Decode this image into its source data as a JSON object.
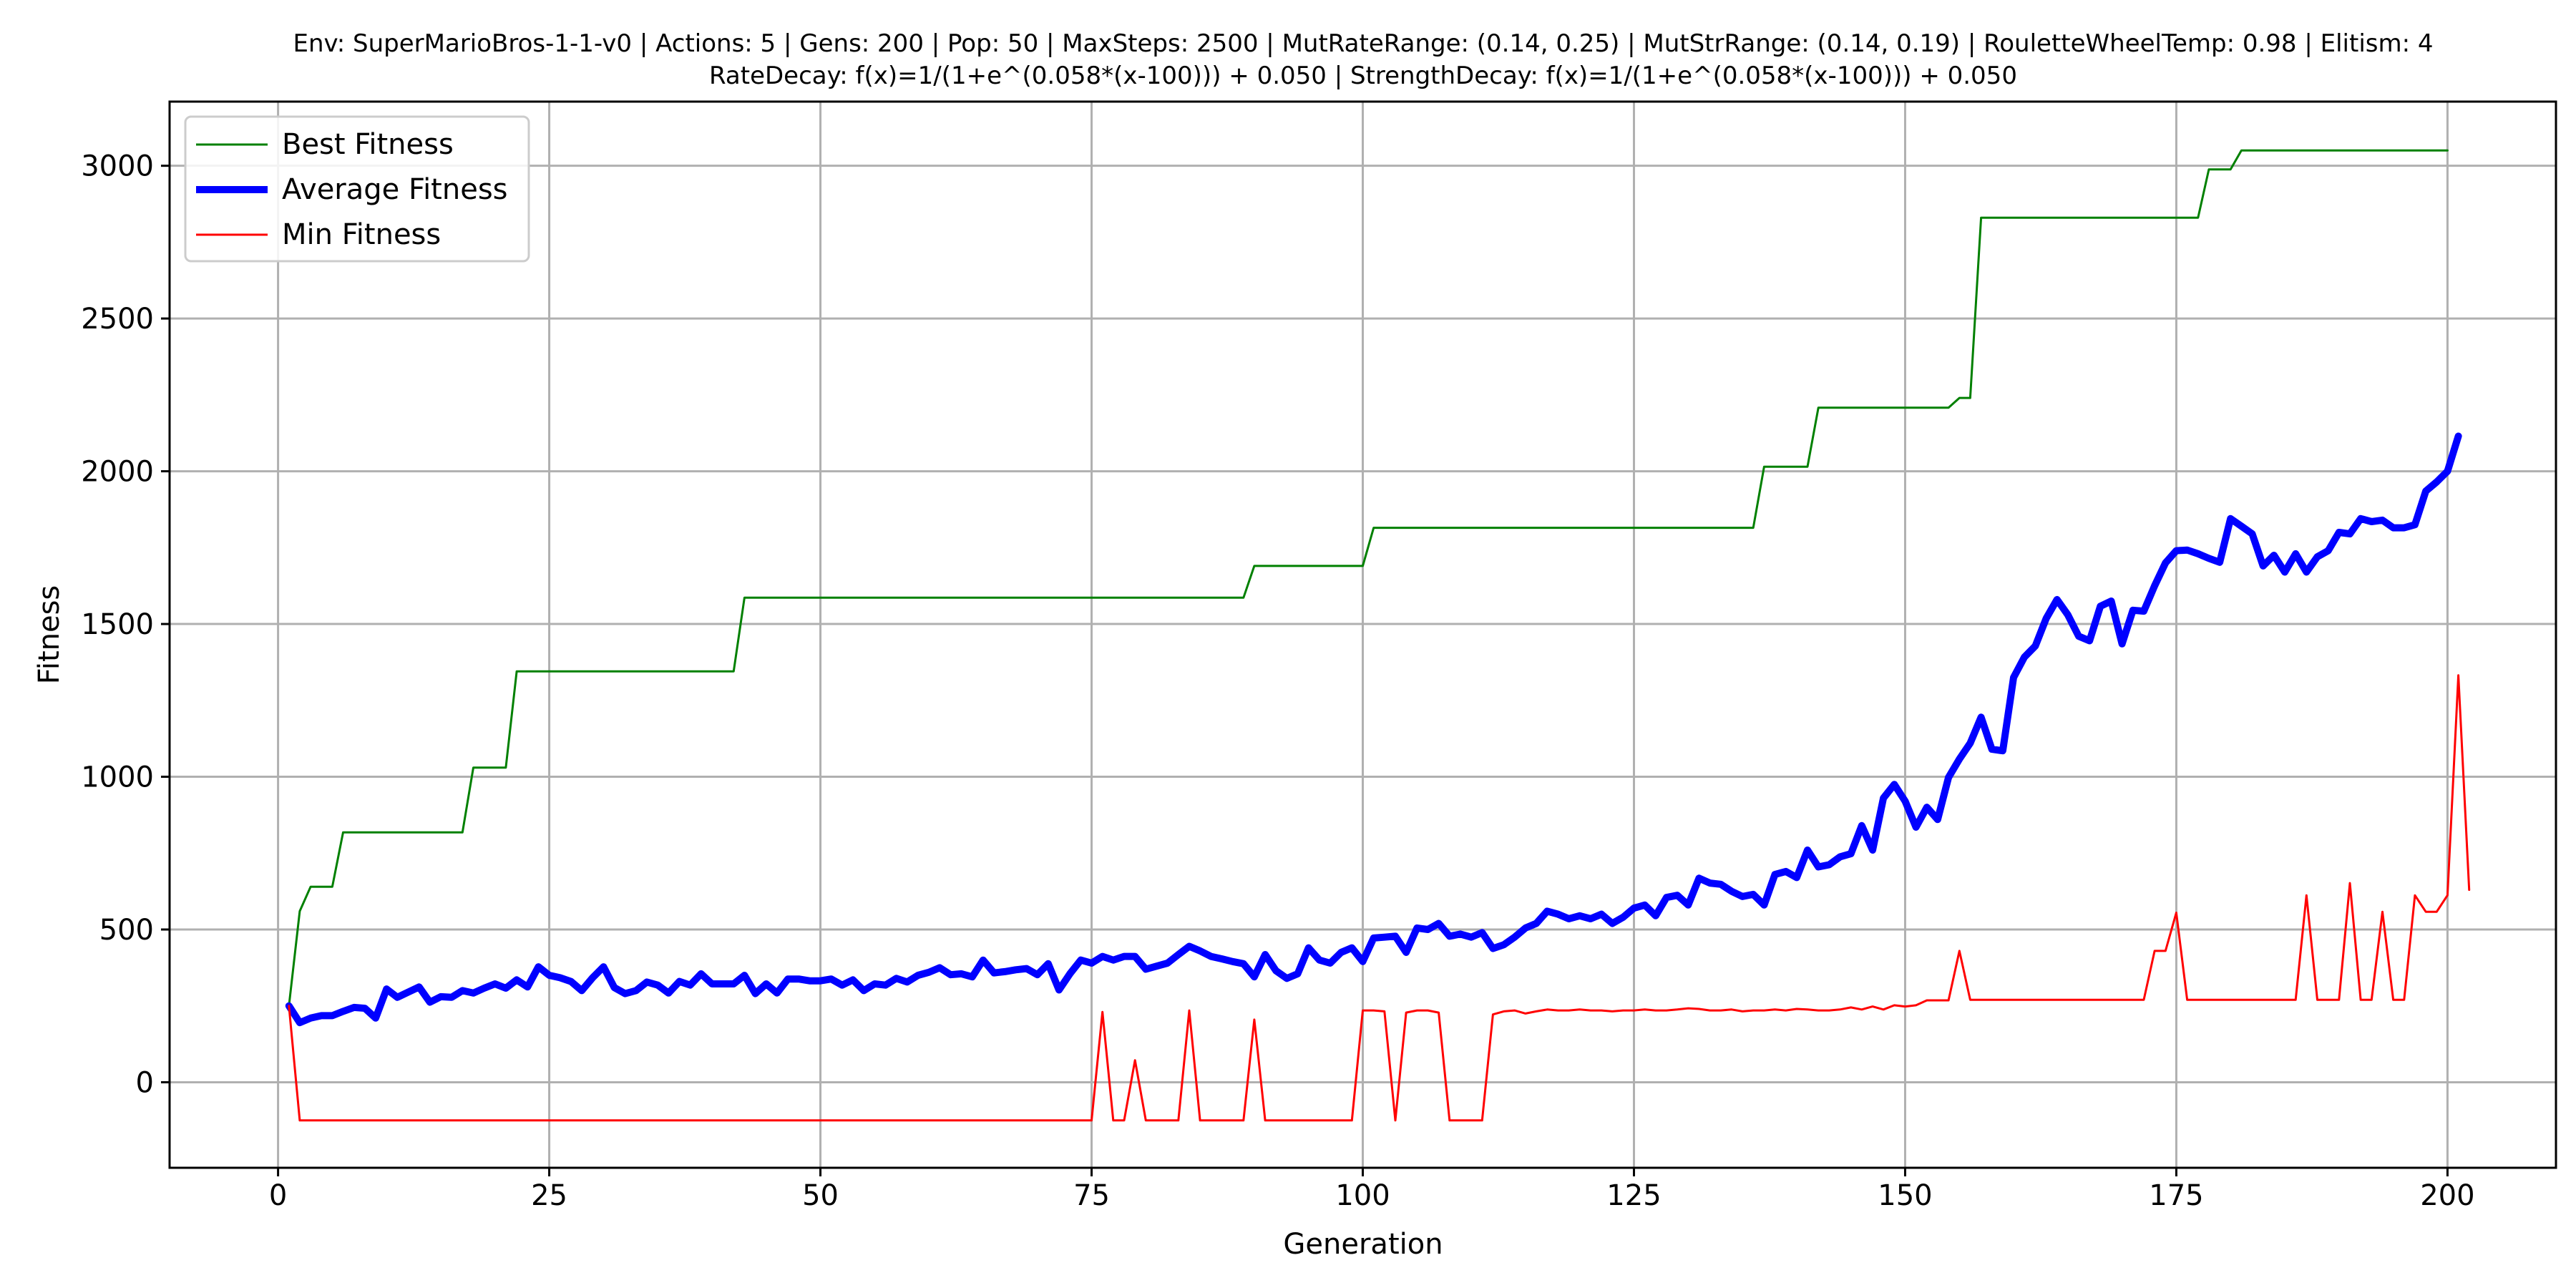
{
  "chart_data": {
    "type": "line",
    "title": "Env: SuperMarioBros-1-1-v0 | Actions: 5 | Gens: 200 | Pop: 50 | MaxSteps: 2500 | MutRateRange: (0.14, 0.25) | MutStrRange: (0.14, 0.19) | RouletteWheelTemp: 0.98 | Elitism: 4",
    "subtitle": "RateDecay: f(x)=1/(1+e^(0.058*(x-100))) + 0.050 | StrengthDecay: f(x)=1/(1+e^(0.058*(x-100))) + 0.050",
    "xlabel": "Generation",
    "ylabel": "Fitness",
    "xlim": [
      -10,
      210
    ],
    "ylim": [
      -280,
      3210
    ],
    "xticks": [
      0,
      25,
      50,
      75,
      100,
      125,
      150,
      175,
      200
    ],
    "yticks": [
      0,
      500,
      1000,
      1500,
      2000,
      2500,
      3000
    ],
    "grid": true,
    "legend_position": "top-left",
    "series": [
      {
        "name": "Best Fitness",
        "color": "#008000",
        "style": "thin",
        "steps": [
          [
            1,
            250
          ],
          [
            2,
            560
          ],
          [
            3,
            640
          ],
          [
            5,
            640
          ],
          [
            6,
            818
          ],
          [
            17,
            818
          ],
          [
            18,
            1030
          ],
          [
            21,
            1030
          ],
          [
            22,
            1345
          ],
          [
            42,
            1345
          ],
          [
            43,
            1586
          ],
          [
            89,
            1586
          ],
          [
            90,
            1690
          ],
          [
            100,
            1690
          ],
          [
            101,
            1815
          ],
          [
            136,
            1815
          ],
          [
            137,
            2015
          ],
          [
            141,
            2015
          ],
          [
            142,
            2208
          ],
          [
            154,
            2208
          ],
          [
            155,
            2240
          ],
          [
            156,
            2240
          ],
          [
            157,
            2830
          ],
          [
            177,
            2830
          ],
          [
            178,
            2988
          ],
          [
            180,
            2988
          ],
          [
            181,
            3050
          ],
          [
            200,
            3050
          ]
        ]
      },
      {
        "name": "Average Fitness",
        "color": "#0000ff",
        "style": "thick",
        "values": [
          250,
          195,
          210,
          218,
          218,
          232,
          245,
          242,
          210,
          305,
          278,
          295,
          312,
          262,
          280,
          278,
          300,
          292,
          308,
          322,
          308,
          335,
          312,
          378,
          350,
          342,
          330,
          300,
          342,
          378,
          310,
          290,
          300,
          328,
          318,
          292,
          330,
          318,
          355,
          322,
          322,
          322,
          350,
          290,
          322,
          292,
          338,
          338,
          332,
          332,
          338,
          318,
          335,
          300,
          322,
          318,
          340,
          328,
          350,
          360,
          375,
          352,
          355,
          345,
          400,
          358,
          362,
          368,
          372,
          352,
          388,
          302,
          355,
          400,
          390,
          412,
          400,
          412,
          412,
          370,
          380,
          390,
          418,
          445,
          430,
          412,
          404,
          395,
          388,
          345,
          418,
          365,
          340,
          355,
          440,
          400,
          390,
          425,
          440,
          395,
          472,
          475,
          478,
          425,
          505,
          500,
          520,
          478,
          485,
          475,
          490,
          438,
          450,
          475,
          505,
          520,
          560,
          550,
          535,
          545,
          535,
          550,
          520,
          540,
          570,
          580,
          545,
          605,
          612,
          580,
          668,
          652,
          648,
          625,
          608,
          615,
          580,
          680,
          690,
          670,
          760,
          705,
          712,
          738,
          748,
          840,
          760,
          930,
          975,
          920,
          835,
          900,
          860,
          998,
          1058,
          1110,
          1195,
          1090,
          1085,
          1325,
          1392,
          1428,
          1518,
          1580,
          1530,
          1460,
          1445,
          1558,
          1575,
          1435,
          1545,
          1542,
          1625,
          1700,
          1740,
          1742,
          1730,
          1715,
          1702,
          1845,
          1820,
          1795,
          1690,
          1725,
          1670,
          1730,
          1670,
          1720,
          1740,
          1800,
          1795,
          1845,
          1835,
          1840,
          1815,
          1815,
          1825,
          1935,
          1965,
          2000,
          2115
        ]
      },
      {
        "name": "Min Fitness",
        "color": "#ff0000",
        "style": "thin",
        "values": [
          250,
          -125,
          -125,
          -125,
          -125,
          -125,
          -125,
          -125,
          -125,
          -125,
          -125,
          -125,
          -125,
          -125,
          -125,
          -125,
          -125,
          -125,
          -125,
          -125,
          -125,
          -125,
          -125,
          -125,
          -125,
          -125,
          -125,
          -125,
          -125,
          -125,
          -125,
          -125,
          -125,
          -125,
          -125,
          -125,
          -125,
          -125,
          -125,
          -125,
          -125,
          -125,
          -125,
          -125,
          -125,
          -125,
          -125,
          -125,
          -125,
          -125,
          -125,
          -125,
          -125,
          -125,
          -125,
          -125,
          -125,
          -125,
          -125,
          -125,
          -125,
          -125,
          -125,
          -125,
          -125,
          -125,
          -125,
          -125,
          -125,
          -125,
          -125,
          -125,
          -125,
          -125,
          -125,
          230,
          -125,
          -125,
          72,
          -125,
          -125,
          -125,
          -125,
          235,
          -125,
          -125,
          -125,
          -125,
          -125,
          205,
          -125,
          -125,
          -125,
          -125,
          -125,
          -125,
          -125,
          -125,
          -125,
          235,
          235,
          232,
          -125,
          228,
          235,
          235,
          228,
          -125,
          -125,
          -125,
          -125,
          222,
          232,
          235,
          225,
          232,
          238,
          235,
          235,
          238,
          235,
          235,
          232,
          235,
          235,
          238,
          235,
          235,
          238,
          242,
          240,
          235,
          235,
          238,
          232,
          235,
          235,
          238,
          235,
          240,
          238,
          235,
          235,
          238,
          245,
          238,
          248,
          238,
          252,
          248,
          252,
          268,
          268,
          268,
          430,
          270,
          270,
          270,
          270,
          270,
          270,
          270,
          270,
          270,
          270,
          270,
          270,
          270,
          270,
          270,
          270,
          270,
          430,
          430,
          555,
          270,
          270,
          270,
          270,
          270,
          270,
          270,
          270,
          270,
          270,
          270,
          612,
          270,
          270,
          270,
          652,
          270,
          270,
          558,
          270,
          270,
          612,
          558,
          558,
          612,
          1332,
          630
        ]
      }
    ]
  }
}
